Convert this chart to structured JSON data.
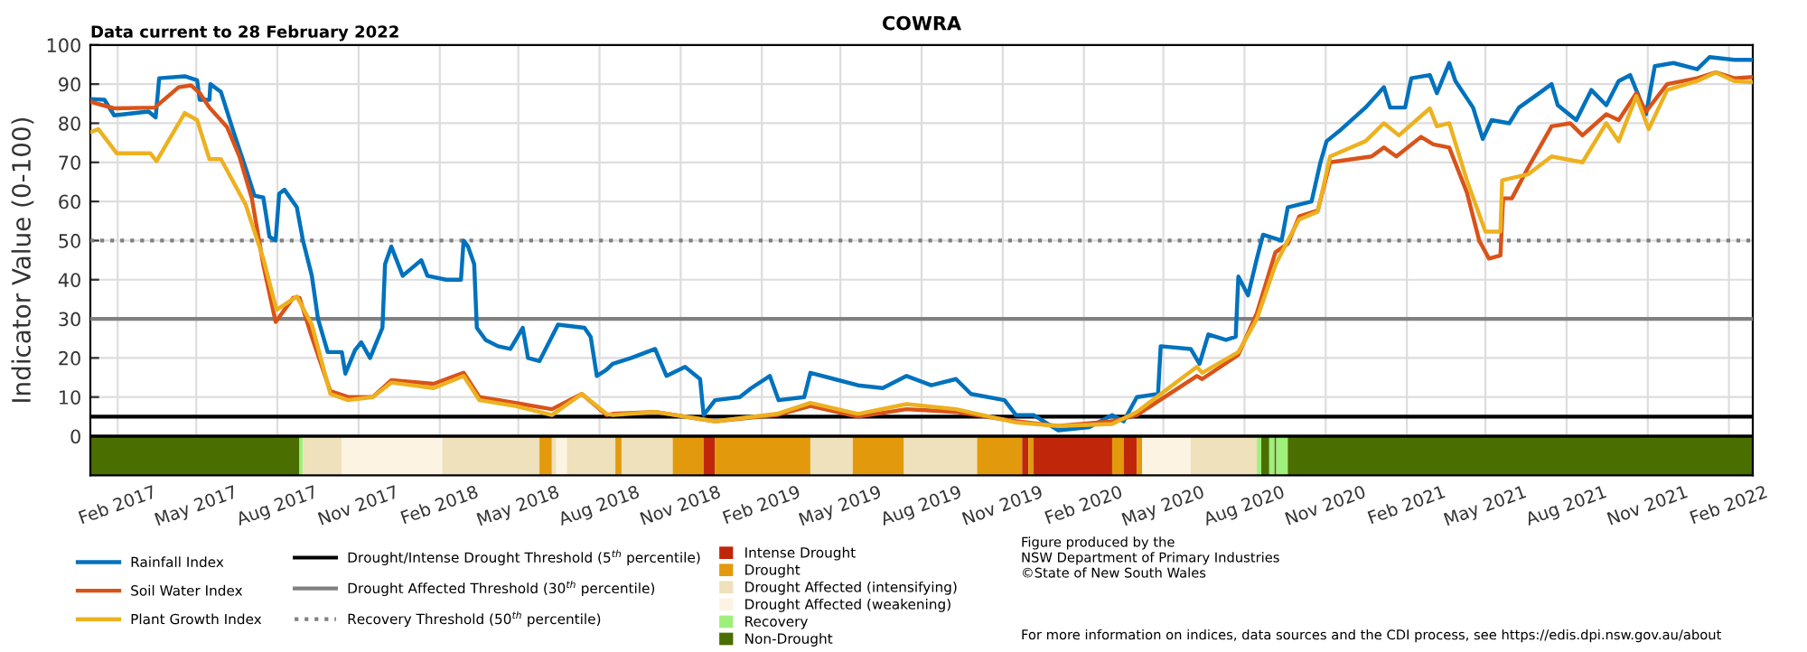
{
  "chart_data": {
    "type": "line",
    "title": "COWRA",
    "ylabel": "Indicator Value (0-100)",
    "annotations": [
      "Data current to 28 February 2022",
      "Figure produced by the\nNSW Department of Primary Industries\n©State of New South Wales",
      "For more information on indices, data sources and the CDI process, see https://edis.dpi.nsw.gov.au/about"
    ],
    "series": [
      {
        "name": "Rainfall Index",
        "color": "#0072bd",
        "x": [
          "2017-01-01",
          "2017-01-17",
          "2017-01-28",
          "2017-03-08",
          "2017-03-16",
          "2017-03-20",
          "2017-04-18",
          "2017-05-02",
          "2017-05-05",
          "2017-05-16",
          "2017-05-17",
          "2017-05-29",
          "2017-06-12",
          "2017-06-26",
          "2017-07-06",
          "2017-07-16",
          "2017-07-23",
          "2017-07-30",
          "2017-08-03",
          "2017-08-09",
          "2017-08-23",
          "2017-08-30",
          "2017-09-09",
          "2017-09-16",
          "2017-09-27",
          "2017-10-13",
          "2017-10-17",
          "2017-10-28",
          "2017-11-04",
          "2017-11-14",
          "2017-11-28",
          "2017-12-01",
          "2017-12-08",
          "2017-12-21",
          "2018-01-11",
          "2018-01-18",
          "2018-02-08",
          "2018-02-25",
          "2018-02-28",
          "2018-03-05",
          "2018-03-12",
          "2018-03-15",
          "2018-03-25",
          "2018-04-08",
          "2018-04-22",
          "2018-05-06",
          "2018-05-12",
          "2018-05-25",
          "2018-06-15",
          "2018-07-15",
          "2018-07-22",
          "2018-07-29",
          "2018-08-09",
          "2018-08-16",
          "2018-09-06",
          "2018-10-03",
          "2018-10-16",
          "2018-11-06",
          "2018-11-23",
          "2018-11-27",
          "2018-12-10",
          "2019-01-07",
          "2019-01-20",
          "2019-02-10",
          "2019-02-20",
          "2019-03-21",
          "2019-03-28",
          "2019-04-24",
          "2019-05-21",
          "2019-06-18",
          "2019-07-15",
          "2019-08-12",
          "2019-09-09",
          "2019-09-26",
          "2019-11-03",
          "2019-11-16",
          "2019-12-06",
          "2020-01-03",
          "2020-02-07",
          "2020-03-04",
          "2020-03-17",
          "2020-04-01",
          "2020-04-25",
          "2020-04-28",
          "2020-06-01",
          "2020-06-11",
          "2020-06-21",
          "2020-07-11",
          "2020-07-22",
          "2020-07-25",
          "2020-08-05",
          "2020-08-15",
          "2020-08-22",
          "2020-09-12",
          "2020-09-19",
          "2020-10-16",
          "2020-10-26",
          "2020-11-02",
          "2020-11-19",
          "2020-12-16",
          "2021-01-06",
          "2021-01-13",
          "2021-01-30",
          "2021-02-06",
          "2021-02-27",
          "2021-03-07",
          "2021-03-21",
          "2021-03-28",
          "2021-04-17",
          "2021-04-28",
          "2021-05-08",
          "2021-05-28",
          "2021-06-08",
          "2021-07-01",
          "2021-07-15",
          "2021-07-22",
          "2021-08-12",
          "2021-08-29",
          "2021-09-15",
          "2021-09-29",
          "2021-10-12",
          "2021-10-30",
          "2021-11-09",
          "2021-11-30",
          "2021-12-27",
          "2022-01-10",
          "2022-02-07",
          "2022-02-28"
        ],
        "values": [
          86.2,
          86,
          82,
          83,
          81.5,
          91.5,
          92,
          91,
          86,
          86,
          90,
          88,
          78,
          68.5,
          61.5,
          61,
          51,
          50,
          62,
          63,
          58.5,
          50,
          41,
          30,
          21.5,
          21.5,
          16,
          22,
          24,
          20,
          27.7,
          44,
          48.5,
          41,
          45,
          41,
          40,
          40,
          50,
          48.5,
          44,
          27.7,
          24.6,
          23,
          22.3,
          27.7,
          20,
          19.2,
          28.5,
          27.7,
          25.4,
          15.4,
          17,
          18.5,
          20,
          22.3,
          15.4,
          17.7,
          14.6,
          5.4,
          9.2,
          10,
          12.3,
          15.4,
          9.2,
          10,
          16.2,
          14.6,
          13,
          12.3,
          15.4,
          13,
          14.6,
          10.8,
          9.2,
          5.4,
          5.4,
          1.5,
          2.3,
          5.4,
          3.8,
          10,
          10.8,
          23,
          22.3,
          18.5,
          26,
          24.6,
          25.4,
          40.8,
          36,
          45.4,
          51.5,
          50,
          58.5,
          60,
          70,
          75.4,
          78.5,
          84,
          89.2,
          84,
          84,
          91.5,
          92.3,
          87.7,
          95.4,
          90.8,
          84,
          76,
          80.8,
          80,
          84,
          87.7,
          90,
          84.6,
          80.8,
          88.5,
          84.6,
          90.8,
          92.3,
          82.3,
          94.6,
          95.4,
          93.8,
          96.9,
          96.2,
          96.2
        ]
      },
      {
        "name": "Soil Water Index",
        "color": "#d95319",
        "x": [
          "2017-01-01",
          "2017-01-28",
          "2017-03-15",
          "2017-04-11",
          "2017-04-25",
          "2017-05-05",
          "2017-05-16",
          "2017-06-05",
          "2017-06-19",
          "2017-07-03",
          "2017-07-16",
          "2017-07-30",
          "2017-08-19",
          "2017-08-26",
          "2017-09-09",
          "2017-09-30",
          "2017-10-20",
          "2017-11-17",
          "2017-12-08",
          "2018-01-25",
          "2018-02-28",
          "2018-03-18",
          "2018-04-28",
          "2018-06-08",
          "2018-07-12",
          "2018-08-09",
          "2018-08-16",
          "2018-10-03",
          "2018-12-10",
          "2019-02-18",
          "2019-03-28",
          "2019-05-21",
          "2019-07-15",
          "2019-09-09",
          "2019-11-16",
          "2020-01-03",
          "2020-03-04",
          "2020-04-01",
          "2020-06-08",
          "2020-06-14",
          "2020-07-25",
          "2020-08-15",
          "2020-09-05",
          "2020-09-19",
          "2020-10-02",
          "2020-10-23",
          "2020-11-06",
          "2020-12-23",
          "2021-01-06",
          "2021-01-20",
          "2021-02-17",
          "2021-03-03",
          "2021-03-21",
          "2021-04-10",
          "2021-04-24",
          "2021-05-05",
          "2021-05-18",
          "2021-05-21",
          "2021-05-31",
          "2021-06-18",
          "2021-07-15",
          "2021-08-05",
          "2021-08-19",
          "2021-09-15",
          "2021-09-29",
          "2021-10-19",
          "2021-10-30",
          "2021-11-23",
          "2021-12-27",
          "2022-01-17",
          "2022-02-07",
          "2022-02-28"
        ],
        "values": [
          85.5,
          83.8,
          84,
          89.2,
          89.7,
          87.7,
          84,
          79,
          71.5,
          60.8,
          43.8,
          29.2,
          35.4,
          35.4,
          25.4,
          11.5,
          10,
          10,
          14.3,
          13.4,
          16.2,
          10,
          8.5,
          6.9,
          10.8,
          5.4,
          5.7,
          6.2,
          3.8,
          5.4,
          7.7,
          5,
          6.9,
          6.2,
          3.8,
          2.6,
          3.8,
          5.4,
          15.4,
          14.6,
          20.8,
          31.5,
          47,
          49.2,
          56.2,
          57.7,
          70,
          71.5,
          73.8,
          71.5,
          76.5,
          74.6,
          73.8,
          62.3,
          50,
          45.4,
          46.2,
          60.8,
          60.8,
          68.5,
          79.2,
          80,
          76.9,
          82.3,
          80.8,
          87.7,
          83,
          90,
          91.5,
          93,
          91.5,
          91.8
        ]
      },
      {
        "name": "Plant Growth Index",
        "color": "#edb120",
        "x": [
          "2017-01-01",
          "2017-01-10",
          "2017-01-31",
          "2017-03-10",
          "2017-03-17",
          "2017-04-18",
          "2017-05-02",
          "2017-05-16",
          "2017-05-29",
          "2017-06-26",
          "2017-07-16",
          "2017-07-31",
          "2017-08-23",
          "2017-09-09",
          "2017-09-30",
          "2017-10-20",
          "2017-11-17",
          "2017-12-08",
          "2018-01-25",
          "2018-02-28",
          "2018-03-18",
          "2018-04-28",
          "2018-06-08",
          "2018-07-12",
          "2018-08-09",
          "2018-08-16",
          "2018-10-03",
          "2018-12-10",
          "2019-02-18",
          "2019-03-28",
          "2019-05-21",
          "2019-07-15",
          "2019-09-09",
          "2019-11-16",
          "2020-01-03",
          "2020-03-04",
          "2020-04-01",
          "2020-06-08",
          "2020-06-14",
          "2020-07-25",
          "2020-08-15",
          "2020-09-05",
          "2020-09-19",
          "2020-10-02",
          "2020-10-23",
          "2020-11-06",
          "2020-12-16",
          "2021-01-06",
          "2021-01-23",
          "2021-02-27",
          "2021-03-07",
          "2021-03-21",
          "2021-04-10",
          "2021-05-01",
          "2021-05-18",
          "2021-05-20",
          "2021-06-18",
          "2021-07-15",
          "2021-08-19",
          "2021-09-15",
          "2021-09-29",
          "2021-10-19",
          "2021-11-02",
          "2021-11-23",
          "2021-12-27",
          "2022-01-17",
          "2022-02-07",
          "2022-02-28"
        ],
        "values": [
          77.7,
          78.5,
          72.3,
          72.3,
          70.3,
          82.6,
          80.8,
          70.8,
          70.8,
          59.2,
          45.4,
          32.3,
          35.7,
          28.5,
          10.8,
          9.2,
          10,
          13.7,
          12.3,
          15.4,
          9.2,
          7.7,
          5.4,
          10.8,
          5.7,
          5.4,
          6.2,
          3.8,
          5.7,
          8.5,
          5.7,
          8.2,
          6.9,
          3.5,
          2.6,
          3.1,
          6.2,
          17.7,
          16.2,
          21.5,
          30,
          43.8,
          50,
          55.4,
          57.4,
          71.5,
          75.4,
          80,
          76.9,
          83.8,
          79.2,
          80,
          65.4,
          52.3,
          52.3,
          65.4,
          66.9,
          71.5,
          70,
          80,
          75.4,
          86.9,
          78.5,
          88.5,
          90.8,
          93,
          90.8,
          90.5
        ]
      }
    ],
    "ref_lines": [
      {
        "axis": "y",
        "value": 5,
        "label": "Drought/Intense Drought Threshold (5$^{th}$ percentile)",
        "color": "#000000",
        "line_style": "solid"
      },
      {
        "axis": "y",
        "value": 30,
        "label": "Drought Affected Threshold (30$^{th}$ percentile)",
        "color": "#808080",
        "line_style": "solid"
      },
      {
        "axis": "y",
        "value": 50,
        "label": "Recovery Threshold (50$^{th}$ percentile)",
        "color": "#808080",
        "line_style": "dotted"
      }
    ],
    "bands": [
      {
        "axis": "x",
        "from": "2017-01-01",
        "to": "2017-08-26",
        "label": "Non-Drought",
        "color": "#4a6e00"
      },
      {
        "axis": "x",
        "from": "2017-08-26",
        "to": "2017-08-30",
        "label": "Recovery",
        "color": "#9ef07a"
      },
      {
        "axis": "x",
        "from": "2017-08-30",
        "to": "2017-10-13",
        "color": "#eee1bb"
      },
      {
        "axis": "x",
        "from": "2017-10-13",
        "to": "2018-02-04",
        "label": "Drought Affected (weakening)",
        "color": "#fdf3e3"
      },
      {
        "axis": "x",
        "from": "2018-02-04",
        "to": "2018-05-25",
        "label": "Drought Affected (intensifying)",
        "color": "#eee1bb"
      },
      {
        "axis": "x",
        "from": "2018-05-25",
        "to": "2018-06-08",
        "label": "Drought",
        "color": "#e29a0c"
      },
      {
        "axis": "x",
        "from": "2018-06-08",
        "to": "2018-06-13",
        "color": "#eee1bb"
      },
      {
        "axis": "x",
        "from": "2018-06-13",
        "to": "2018-06-25",
        "color": "#fdf3e3"
      },
      {
        "axis": "x",
        "from": "2018-06-25",
        "to": "2018-08-19",
        "color": "#eee1bb"
      },
      {
        "axis": "x",
        "from": "2018-08-19",
        "to": "2018-08-26",
        "color": "#e29a0c"
      },
      {
        "axis": "x",
        "from": "2018-08-26",
        "to": "2018-10-23",
        "color": "#eee1bb"
      },
      {
        "axis": "x",
        "from": "2018-10-23",
        "to": "2018-11-27",
        "color": "#e29a0c"
      },
      {
        "axis": "x",
        "from": "2018-11-27",
        "to": "2018-12-10",
        "label": "Intense Drought",
        "color": "#c0270a"
      },
      {
        "axis": "x",
        "from": "2018-12-10",
        "to": "2019-03-28",
        "color": "#e29a0c"
      },
      {
        "axis": "x",
        "from": "2019-03-28",
        "to": "2019-05-15",
        "color": "#eee1bb"
      },
      {
        "axis": "x",
        "from": "2019-05-15",
        "to": "2019-07-12",
        "color": "#e29a0c"
      },
      {
        "axis": "x",
        "from": "2019-07-12",
        "to": "2019-10-03",
        "color": "#eee1bb"
      },
      {
        "axis": "x",
        "from": "2019-10-03",
        "to": "2019-11-23",
        "color": "#e29a0c"
      },
      {
        "axis": "x",
        "from": "2019-11-23",
        "to": "2019-11-30",
        "color": "#c0270a"
      },
      {
        "axis": "x",
        "from": "2019-11-30",
        "to": "2019-12-06",
        "color": "#e29a0c"
      },
      {
        "axis": "x",
        "from": "2019-12-06",
        "to": "2020-03-04",
        "color": "#c0270a"
      },
      {
        "axis": "x",
        "from": "2020-03-04",
        "to": "2020-03-17",
        "color": "#e29a0c"
      },
      {
        "axis": "x",
        "from": "2020-03-17",
        "to": "2020-04-01",
        "color": "#c0270a"
      },
      {
        "axis": "x",
        "from": "2020-04-01",
        "to": "2020-04-07",
        "color": "#e29a0c"
      },
      {
        "axis": "x",
        "from": "2020-04-07",
        "to": "2020-06-01",
        "color": "#fdf3e3"
      },
      {
        "axis": "x",
        "from": "2020-06-01",
        "to": "2020-08-15",
        "color": "#eee1bb"
      },
      {
        "axis": "x",
        "from": "2020-08-15",
        "to": "2020-08-20",
        "color": "#9ef07a"
      },
      {
        "axis": "x",
        "from": "2020-08-20",
        "to": "2020-08-29",
        "color": "#4a6e00"
      },
      {
        "axis": "x",
        "from": "2020-08-29",
        "to": "2020-09-04",
        "color": "#9ef07a"
      },
      {
        "axis": "x",
        "from": "2020-09-04",
        "to": "2020-09-06",
        "color": "#4a6e00"
      },
      {
        "axis": "x",
        "from": "2020-09-06",
        "to": "2020-09-19",
        "color": "#9ef07a"
      },
      {
        "axis": "x",
        "from": "2020-09-19",
        "to": "2022-02-28",
        "color": "#4a6e00"
      }
    ],
    "xlim": [
      "2017-01-01",
      "2022-02-28"
    ],
    "xticks": [
      {
        "value": "2017-02-01",
        "label": "Feb 2017"
      },
      {
        "value": "2017-05-01",
        "label": "May 2017"
      },
      {
        "value": "2017-08-01",
        "label": "Aug 2017"
      },
      {
        "value": "2017-11-01",
        "label": "Nov 2017"
      },
      {
        "value": "2018-02-01",
        "label": "Feb 2018"
      },
      {
        "value": "2018-05-01",
        "label": "May 2018"
      },
      {
        "value": "2018-08-01",
        "label": "Aug 2018"
      },
      {
        "value": "2018-11-01",
        "label": "Nov 2018"
      },
      {
        "value": "2019-02-01",
        "label": "Feb 2019"
      },
      {
        "value": "2019-05-01",
        "label": "May 2019"
      },
      {
        "value": "2019-08-01",
        "label": "Aug 2019"
      },
      {
        "value": "2019-11-01",
        "label": "Nov 2019"
      },
      {
        "value": "2020-02-01",
        "label": "Feb 2020"
      },
      {
        "value": "2020-05-01",
        "label": "May 2020"
      },
      {
        "value": "2020-08-01",
        "label": "Aug 2020"
      },
      {
        "value": "2020-11-01",
        "label": "Nov 2020"
      },
      {
        "value": "2021-02-01",
        "label": "Feb 2021"
      },
      {
        "value": "2021-05-01",
        "label": "May 2021"
      },
      {
        "value": "2021-08-01",
        "label": "Aug 2021"
      },
      {
        "value": "2021-11-01",
        "label": "Nov 2021"
      },
      {
        "value": "2022-02-01",
        "label": "Feb 2022"
      }
    ],
    "ylim": [
      -10,
      100
    ],
    "yticks": [
      0,
      10,
      20,
      30,
      40,
      50,
      60,
      70,
      80,
      90,
      100
    ],
    "grid": true,
    "legend": "bottom",
    "marker": "none",
    "line_style": "solid"
  }
}
